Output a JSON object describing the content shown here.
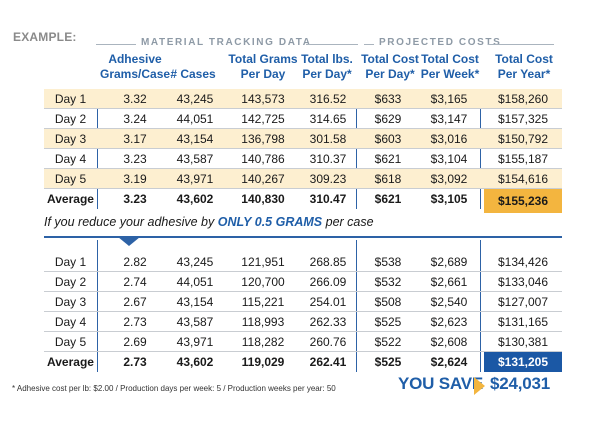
{
  "example_label": "EXAMPLE:",
  "groups": {
    "material": "MATERIAL TRACKING DATA",
    "projected": "PROJECTED COSTS"
  },
  "columns": [
    "Adhesive\nGrams/Case",
    "# Cases",
    "Total Grams\nPer Day",
    "Total lbs.\nPer Day*",
    "Total Cost\nPer Day*",
    "Total Cost\nPer Week*",
    "Total Cost\nPer Year*"
  ],
  "table1": {
    "rows": [
      {
        "label": "Day 1",
        "values": [
          "3.32",
          "43,245",
          "143,573",
          "316.52",
          "$633",
          "$3,165",
          "$158,260"
        ]
      },
      {
        "label": "Day 2",
        "values": [
          "3.24",
          "44,051",
          "142,725",
          "314.65",
          "$629",
          "$3,147",
          "$157,325"
        ]
      },
      {
        "label": "Day 3",
        "values": [
          "3.17",
          "43,154",
          "136,798",
          "301.58",
          "$603",
          "$3,016",
          "$150,792"
        ]
      },
      {
        "label": "Day 4",
        "values": [
          "3.23",
          "43,587",
          "140,786",
          "310.37",
          "$621",
          "$3,104",
          "$155,187"
        ]
      },
      {
        "label": "Day 5",
        "values": [
          "3.19",
          "43,971",
          "140,267",
          "309.23",
          "$618",
          "$3,092",
          "$154,616"
        ]
      }
    ],
    "average": {
      "label": "Average",
      "values": [
        "3.23",
        "43,602",
        "140,830",
        "310.47",
        "$621",
        "$3,105",
        "$155,236"
      ]
    }
  },
  "reduce_text": {
    "prefix": "If you reduce your adhesive by ",
    "emphasis": "ONLY 0.5 GRAMS",
    "suffix": " per case"
  },
  "table2": {
    "rows": [
      {
        "label": "Day 1",
        "values": [
          "2.82",
          "43,245",
          "121,951",
          "268.85",
          "$538",
          "$2,689",
          "$134,426"
        ]
      },
      {
        "label": "Day 2",
        "values": [
          "2.74",
          "44,051",
          "120,700",
          "266.09",
          "$532",
          "$2,661",
          "$133,046"
        ]
      },
      {
        "label": "Day 3",
        "values": [
          "2.67",
          "43,154",
          "115,221",
          "254.01",
          "$508",
          "$2,540",
          "$127,007"
        ]
      },
      {
        "label": "Day 4",
        "values": [
          "2.73",
          "43,587",
          "118,993",
          "262.33",
          "$525",
          "$2,623",
          "$131,165"
        ]
      },
      {
        "label": "Day 5",
        "values": [
          "2.69",
          "43,971",
          "118,282",
          "260.76",
          "$522",
          "$2,608",
          "$130,381"
        ]
      }
    ],
    "average": {
      "label": "Average",
      "values": [
        "2.73",
        "43,602",
        "119,029",
        "262.41",
        "$525",
        "$2,624",
        "$131,205"
      ]
    }
  },
  "footnote": "*  Adhesive cost per lb: $2.00  /  Production days per week: 5  /  Production weeks per year: 50",
  "savings": {
    "label": "YOU SAVE",
    "amount": "$24,031"
  },
  "colors": {
    "accent_blue": "#1f5ea8",
    "shade_cream": "#fdefd0",
    "highlight_gold": "#f3b53f",
    "highlight_blue": "#1b58a5"
  }
}
